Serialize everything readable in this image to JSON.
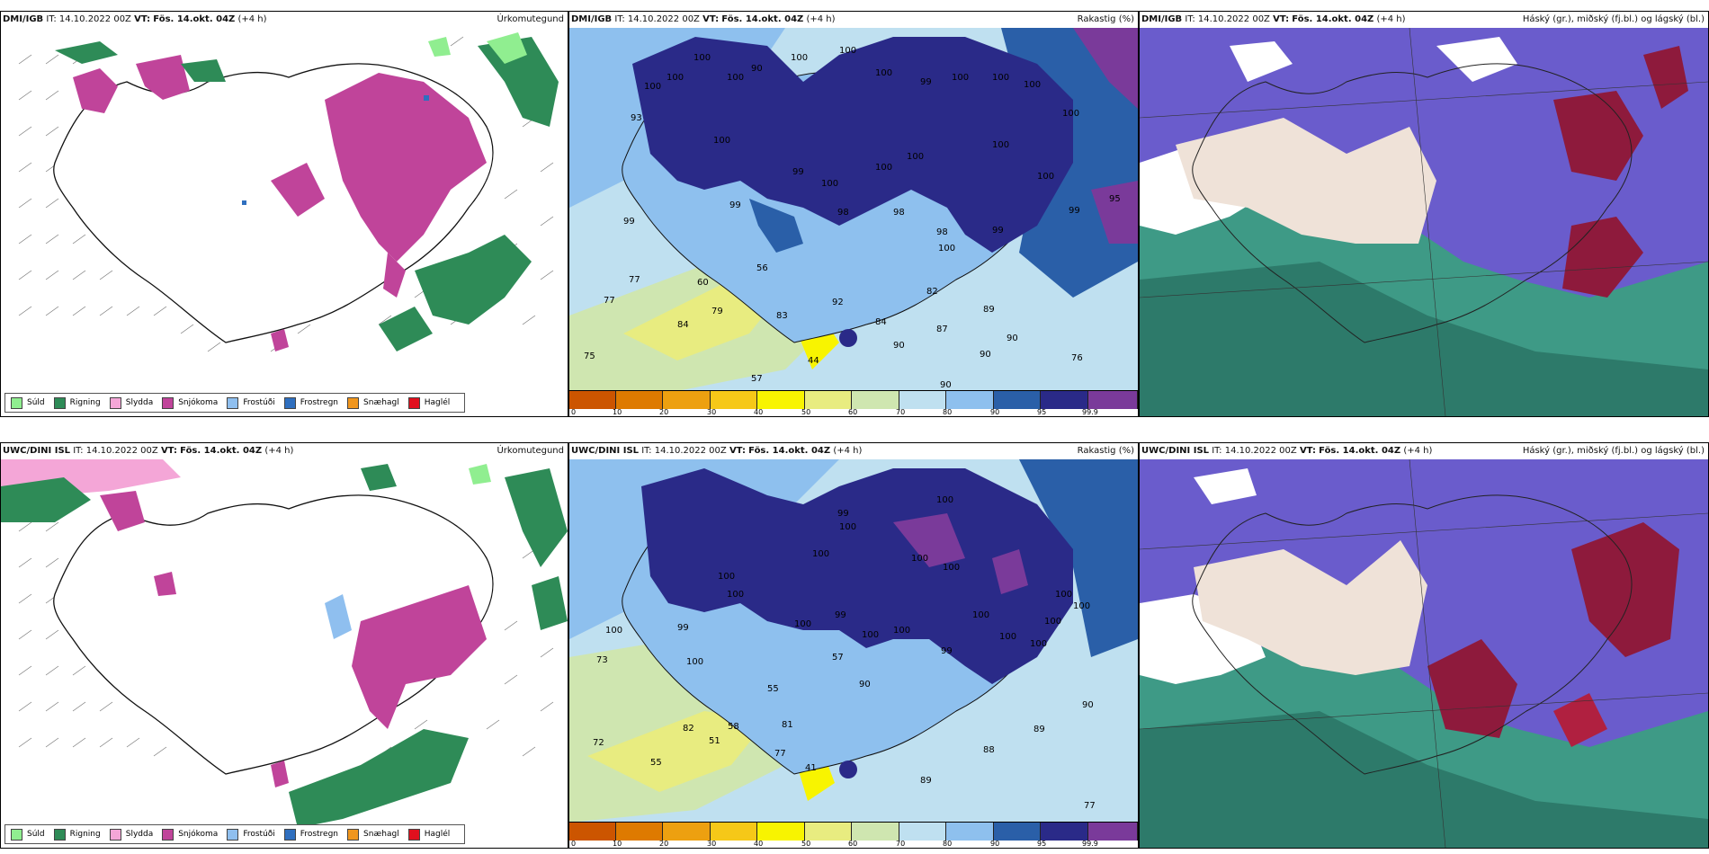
{
  "panels": [
    {
      "model": "DMI/IGB",
      "it_label": "IT:",
      "it_value": "14.10.2022 00Z",
      "vt_label": "VT:",
      "vt_value": "Fös. 14.okt. 04Z",
      "offset": "(+4 h)",
      "product": "Úrkomutegund"
    },
    {
      "model": "DMI/IGB",
      "it_label": "IT:",
      "it_value": "14.10.2022 00Z",
      "vt_label": "VT:",
      "vt_value": "Fös. 14.okt. 04Z",
      "offset": "(+4 h)",
      "product": "Rakastig (%)"
    },
    {
      "model": "DMI/IGB",
      "it_label": "IT:",
      "it_value": "14.10.2022 00Z",
      "vt_label": "VT:",
      "vt_value": "Fös. 14.okt. 04Z",
      "offset": "(+4 h)",
      "product": "Háský (gr.), miðský (fj.bl.) og lágský (bl.)"
    },
    {
      "model": "UWC/DINI ISL",
      "it_label": "IT:",
      "it_value": "14.10.2022 00Z",
      "vt_label": "VT:",
      "vt_value": "Fös. 14.okt. 04Z",
      "offset": "(+4 h)",
      "product": "Úrkomutegund"
    },
    {
      "model": "UWC/DINI ISL",
      "it_label": "IT:",
      "it_value": "14.10.2022 00Z",
      "vt_label": "VT:",
      "vt_value": "Fös. 14.okt. 04Z",
      "offset": "(+4 h)",
      "product": "Rakastig (%)"
    },
    {
      "model": "UWC/DINI ISL",
      "it_label": "IT:",
      "it_value": "14.10.2022 00Z",
      "vt_label": "VT:",
      "vt_value": "Fös. 14.okt. 04Z",
      "offset": "(+4 h)",
      "product": "Háský (gr.), miðský (fj.bl.) og lágský (bl.)"
    }
  ],
  "precip_legend": [
    {
      "label": "Súld",
      "color": "#90ee90"
    },
    {
      "label": "Rigning",
      "color": "#2e8b57"
    },
    {
      "label": "Slydda",
      "color": "#f4a6d7"
    },
    {
      "label": "Snjókoma",
      "color": "#c0449a"
    },
    {
      "label": "Frostúði",
      "color": "#8fbfef"
    },
    {
      "label": "Frostregn",
      "color": "#2f6fbf"
    },
    {
      "label": "Snæhagl",
      "color": "#f0961e"
    },
    {
      "label": "Haglél",
      "color": "#e0101e"
    }
  ],
  "humidity_scale": {
    "ticks": [
      "0",
      "10",
      "20",
      "30",
      "40",
      "50",
      "60",
      "70",
      "80",
      "90",
      "95",
      "99.9"
    ],
    "colors": [
      "#cc5500",
      "#de7a00",
      "#eda010",
      "#f6c818",
      "#f8f400",
      "#e8ec80",
      "#cfe6b0",
      "#bfe0f0",
      "#8ec0ee",
      "#2a5fa8",
      "#2a2a88",
      "#7a3a9a"
    ]
  },
  "humidity_values_top": [
    "100",
    "100",
    "100",
    "90",
    "100",
    "100",
    "100",
    "99",
    "100",
    "100",
    "100",
    "100",
    "100",
    "99",
    "100",
    "100",
    "100",
    "100",
    "98",
    "98",
    "100",
    "99",
    "98",
    "95",
    "100",
    "99",
    "99",
    "56",
    "60",
    "79",
    "83",
    "77",
    "77",
    "84",
    "92",
    "82",
    "84",
    "87",
    "89",
    "90",
    "90",
    "90",
    "75",
    "44",
    "57",
    "90",
    "76",
    "100",
    "93",
    "99"
  ],
  "humidity_values_bottom": [
    "100",
    "100",
    "99",
    "100",
    "100",
    "100",
    "100",
    "99",
    "100",
    "100",
    "100",
    "99",
    "100",
    "100",
    "100",
    "99",
    "100",
    "100",
    "90",
    "57",
    "55",
    "58",
    "81",
    "82",
    "51",
    "72",
    "55",
    "77",
    "41",
    "89",
    "88",
    "89",
    "90",
    "73",
    "77",
    "100",
    "100",
    "100",
    "100"
  ]
}
